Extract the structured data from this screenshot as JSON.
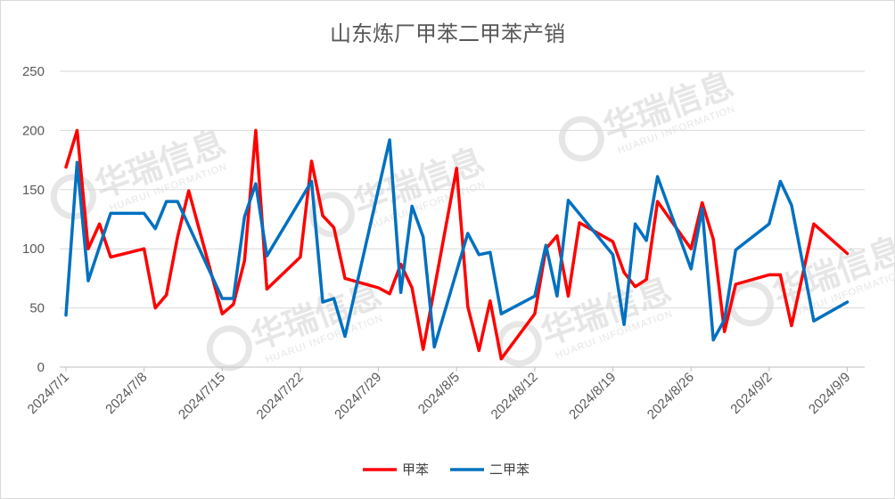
{
  "chart_data": {
    "type": "line",
    "title": "山东炼厂甲苯二甲苯产销",
    "xlabel": "",
    "ylabel": "",
    "ylim": [
      0,
      250
    ],
    "yticks": [
      0,
      50,
      100,
      150,
      200,
      250
    ],
    "grid": true,
    "legend_position": "bottom",
    "x_range": [
      "2024/7/1",
      "2024/9/10"
    ],
    "x_tick_labels": [
      "2024/7/1",
      "2024/7/8",
      "2024/7/15",
      "2024/7/22",
      "2024/7/29",
      "2024/8/5",
      "2024/8/12",
      "2024/8/19",
      "2024/8/26",
      "2024/9/2",
      "2024/9/9"
    ],
    "series": [
      {
        "name": "甲苯",
        "color": "#ff0000",
        "points": [
          [
            "2024/7/1",
            169
          ],
          [
            "2024/7/2",
            200
          ],
          [
            "2024/7/3",
            100
          ],
          [
            "2024/7/4",
            121
          ],
          [
            "2024/7/5",
            93
          ],
          [
            "2024/7/8",
            100
          ],
          [
            "2024/7/9",
            50
          ],
          [
            "2024/7/10",
            61
          ],
          [
            "2024/7/11",
            110
          ],
          [
            "2024/7/12",
            149
          ],
          [
            "2024/7/15",
            45
          ],
          [
            "2024/7/16",
            53
          ],
          [
            "2024/7/17",
            90
          ],
          [
            "2024/7/18",
            200
          ],
          [
            "2024/7/19",
            66
          ],
          [
            "2024/7/22",
            93
          ],
          [
            "2024/7/23",
            174
          ],
          [
            "2024/7/24",
            128
          ],
          [
            "2024/7/25",
            118
          ],
          [
            "2024/7/26",
            75
          ],
          [
            "2024/7/29",
            67
          ],
          [
            "2024/7/30",
            62
          ],
          [
            "2024/7/31",
            87
          ],
          [
            "2024/8/1",
            67
          ],
          [
            "2024/8/2",
            15
          ],
          [
            "2024/8/5",
            168
          ],
          [
            "2024/8/6",
            51
          ],
          [
            "2024/8/7",
            14
          ],
          [
            "2024/8/8",
            56
          ],
          [
            "2024/8/9",
            7
          ],
          [
            "2024/8/12",
            45
          ],
          [
            "2024/8/13",
            100
          ],
          [
            "2024/8/14",
            111
          ],
          [
            "2024/8/15",
            60
          ],
          [
            "2024/8/16",
            122
          ],
          [
            "2024/8/19",
            106
          ],
          [
            "2024/8/20",
            80
          ],
          [
            "2024/8/21",
            68
          ],
          [
            "2024/8/22",
            74
          ],
          [
            "2024/8/23",
            140
          ],
          [
            "2024/8/26",
            100
          ],
          [
            "2024/8/27",
            139
          ],
          [
            "2024/8/28",
            108
          ],
          [
            "2024/8/29",
            30
          ],
          [
            "2024/8/30",
            70
          ],
          [
            "2024/9/2",
            78
          ],
          [
            "2024/9/3",
            78
          ],
          [
            "2024/9/4",
            35
          ],
          [
            "2024/9/6",
            121
          ],
          [
            "2024/9/9",
            96
          ]
        ]
      },
      {
        "name": "二甲苯",
        "color": "#0070c0",
        "points": [
          [
            "2024/7/1",
            44
          ],
          [
            "2024/7/2",
            173
          ],
          [
            "2024/7/3",
            73
          ],
          [
            "2024/7/5",
            130
          ],
          [
            "2024/7/8",
            130
          ],
          [
            "2024/7/9",
            117
          ],
          [
            "2024/7/10",
            140
          ],
          [
            "2024/7/11",
            140
          ],
          [
            "2024/7/15",
            58
          ],
          [
            "2024/7/16",
            58
          ],
          [
            "2024/7/17",
            127
          ],
          [
            "2024/7/18",
            155
          ],
          [
            "2024/7/19",
            94
          ],
          [
            "2024/7/23",
            157
          ],
          [
            "2024/7/24",
            55
          ],
          [
            "2024/7/25",
            58
          ],
          [
            "2024/7/26",
            26
          ],
          [
            "2024/7/30",
            192
          ],
          [
            "2024/7/31",
            63
          ],
          [
            "2024/8/1",
            136
          ],
          [
            "2024/8/2",
            110
          ],
          [
            "2024/8/3",
            17
          ],
          [
            "2024/8/6",
            113
          ],
          [
            "2024/8/7",
            95
          ],
          [
            "2024/8/8",
            97
          ],
          [
            "2024/8/9",
            45
          ],
          [
            "2024/8/12",
            60
          ],
          [
            "2024/8/13",
            103
          ],
          [
            "2024/8/14",
            60
          ],
          [
            "2024/8/15",
            141
          ],
          [
            "2024/8/19",
            95
          ],
          [
            "2024/8/20",
            36
          ],
          [
            "2024/8/21",
            121
          ],
          [
            "2024/8/22",
            107
          ],
          [
            "2024/8/23",
            161
          ],
          [
            "2024/8/26",
            83
          ],
          [
            "2024/8/27",
            134
          ],
          [
            "2024/8/28",
            23
          ],
          [
            "2024/8/29",
            40
          ],
          [
            "2024/8/30",
            99
          ],
          [
            "2024/9/2",
            121
          ],
          [
            "2024/9/3",
            157
          ],
          [
            "2024/9/4",
            137
          ],
          [
            "2024/9/6",
            39
          ],
          [
            "2024/9/9",
            55
          ]
        ]
      }
    ]
  },
  "watermark": {
    "text": "华瑞信息",
    "subtext": "HUARUI INFORMATION"
  }
}
